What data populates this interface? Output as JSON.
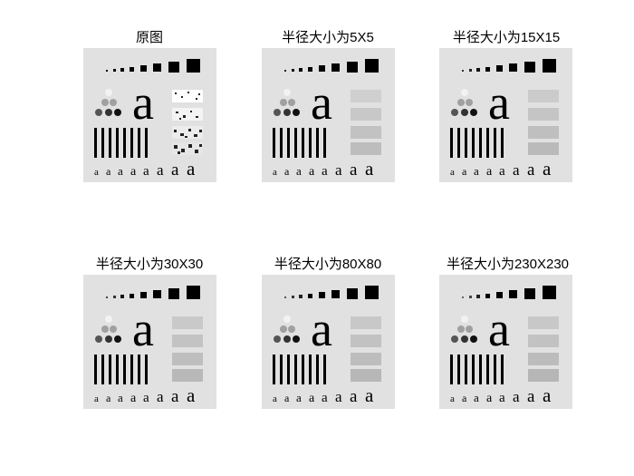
{
  "figure": {
    "panels": [
      {
        "title": "原图",
        "variant": "original"
      },
      {
        "title": "半径大小为5X5",
        "variant": "blur5"
      },
      {
        "title": "半径大小为15X15",
        "variant": "blur15"
      },
      {
        "title": "半径大小为30X30",
        "variant": "blur30"
      },
      {
        "title": "半径大小为80X80",
        "variant": "blur80"
      },
      {
        "title": "半径大小为230X230",
        "variant": "blur230"
      }
    ],
    "test_pattern": {
      "large_letter": "a",
      "small_letters": [
        "a",
        "a",
        "a",
        "a",
        "a",
        "a",
        "a",
        "a",
        "a"
      ]
    },
    "colors": {
      "background": "#ffffff",
      "image_background": "#e1e1e1",
      "ink": "#000000"
    }
  }
}
